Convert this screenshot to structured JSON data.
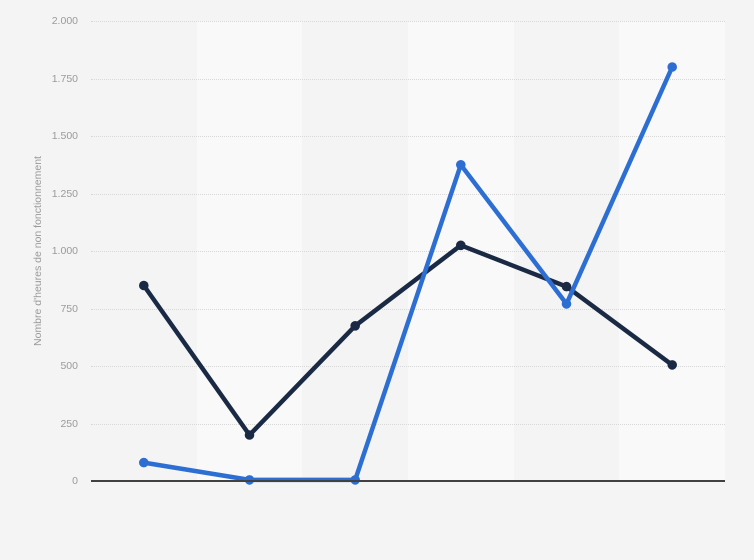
{
  "chart_data": {
    "type": "line",
    "title": "",
    "xlabel": "",
    "ylabel": "Nombre d'heures de non fonctionnement",
    "ylim": [
      0,
      2000
    ],
    "yticks": [
      0,
      250,
      500,
      750,
      1000,
      1250,
      1500,
      1750,
      2000
    ],
    "ytick_labels": [
      "0",
      "250",
      "500",
      "750",
      "1.000",
      "1.250",
      "1.500",
      "1.750",
      "2.000"
    ],
    "categories": [
      "",
      "",
      "",
      "",
      "",
      ""
    ],
    "series": [
      {
        "name": "dark-navy-series",
        "color": "#1b2a44",
        "values": [
          850,
          200,
          675,
          1025,
          845,
          505
        ]
      },
      {
        "name": "blue-series",
        "color": "#2d6ed2",
        "values": [
          80,
          5,
          5,
          1375,
          770,
          1800
        ]
      }
    ],
    "legend": "none",
    "grid": "horizontal-dotted",
    "x_axis_labels_visible": false,
    "colors": {
      "background": "#f4f4f4",
      "band_light": "#f9f9f9",
      "gridline": "#d8d8d8",
      "axis_line": "#414141",
      "label_text": "#9a9a9a"
    }
  }
}
